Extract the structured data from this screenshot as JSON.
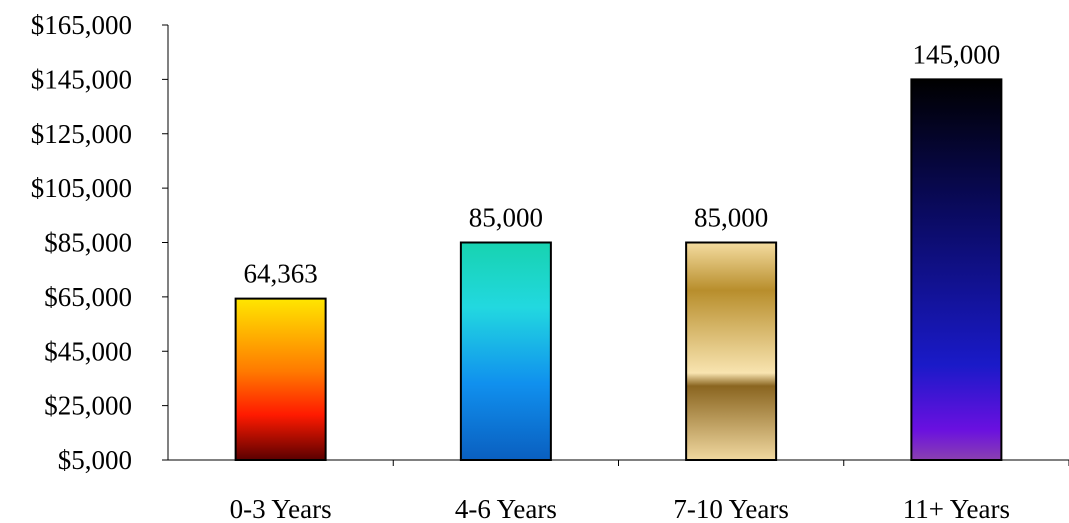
{
  "chart_data": {
    "type": "bar",
    "title": "",
    "xlabel": "",
    "ylabel": "",
    "categories": [
      "0-3 Years",
      "4-6 Years",
      "7-10 Years",
      "11+ Years"
    ],
    "values": [
      64363,
      85000,
      85000,
      145000
    ],
    "data_labels": [
      "64,363",
      "85,000",
      "85,000",
      "145,000"
    ],
    "ylim": [
      5000,
      165000
    ],
    "y_ticks": [
      5000,
      25000,
      45000,
      65000,
      85000,
      105000,
      125000,
      145000,
      165000
    ],
    "y_tick_labels": [
      "$5,000",
      "$25,000",
      "$45,000",
      "$65,000",
      "$85,000",
      "$105,000",
      "$125,000",
      "$145,000",
      "$165,000"
    ],
    "grid": false,
    "legend": "none",
    "bar_fills": [
      {
        "name": "fire",
        "stops": [
          [
            "0",
            "#ffe600"
          ],
          [
            "0.45",
            "#ff7a00"
          ],
          [
            "0.72",
            "#ff1a00"
          ],
          [
            "1",
            "#5a0000"
          ]
        ]
      },
      {
        "name": "ocean",
        "stops": [
          [
            "0",
            "#17d3b0"
          ],
          [
            "0.3",
            "#22d8e0"
          ],
          [
            "0.65",
            "#1090ee"
          ],
          [
            "1",
            "#0a5fc0"
          ]
        ]
      },
      {
        "name": "gold",
        "stops": [
          [
            "0",
            "#f4dca0"
          ],
          [
            "0.22",
            "#b88e2c"
          ],
          [
            "0.6",
            "#f8e4b0"
          ],
          [
            "0.66",
            "#8a6520"
          ],
          [
            "1",
            "#f0d8a0"
          ]
        ]
      },
      {
        "name": "night",
        "stops": [
          [
            "0",
            "#000000"
          ],
          [
            "0.35",
            "#0a0a60"
          ],
          [
            "0.75",
            "#1a1ac8"
          ],
          [
            "0.92",
            "#6a10e0"
          ],
          [
            "1",
            "#8a40b0"
          ]
        ]
      }
    ]
  }
}
